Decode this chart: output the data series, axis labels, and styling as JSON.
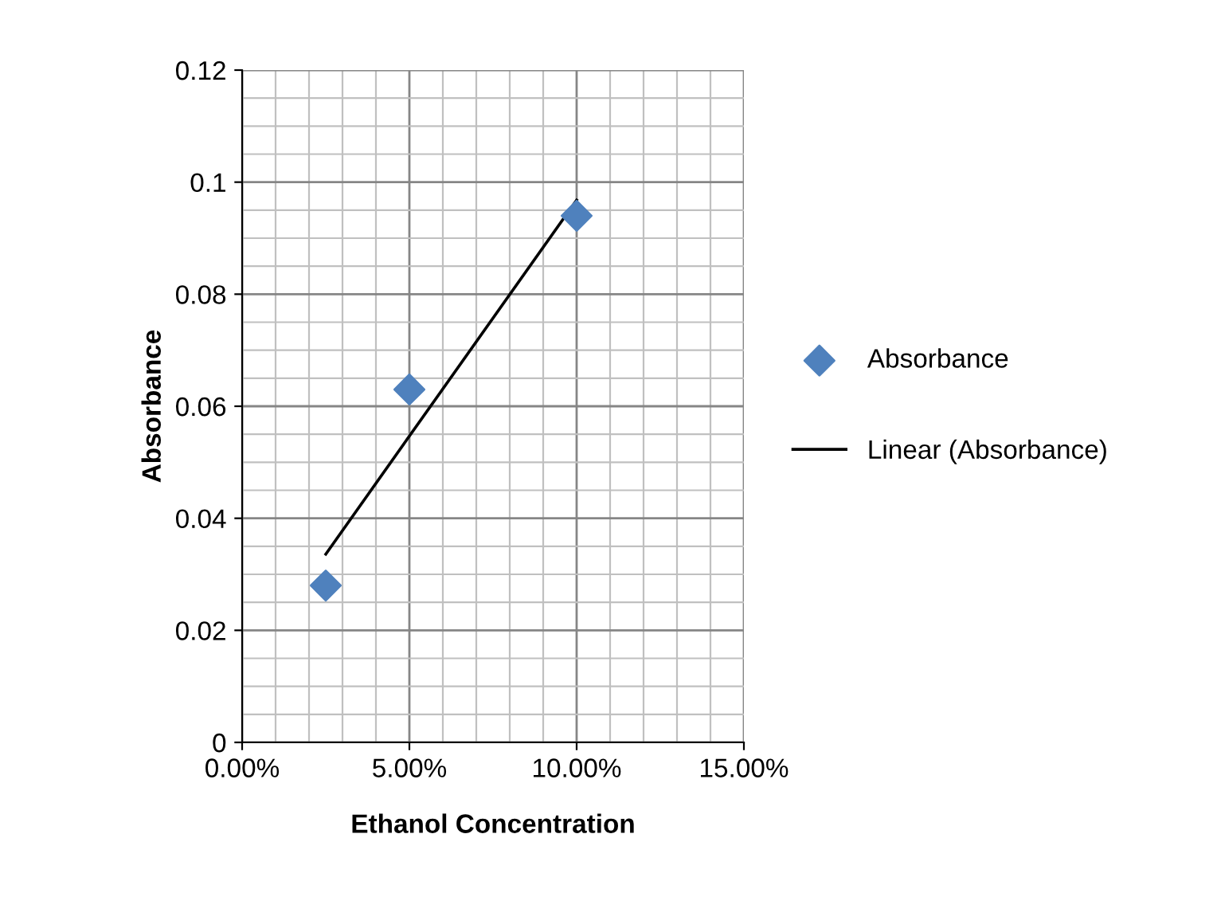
{
  "chart_data": {
    "type": "scatter",
    "xlabel": "Ethanol Concentration",
    "ylabel": "Absorbance",
    "xlim": [
      0,
      0.15
    ],
    "xticks": [
      {
        "value": 0,
        "label": "0.00%"
      },
      {
        "value": 0.05,
        "label": "5.00%"
      },
      {
        "value": 0.1,
        "label": "10.00%"
      },
      {
        "value": 0.15,
        "label": "15.00%"
      }
    ],
    "ylim": [
      0,
      0.12
    ],
    "yticks": [
      0,
      0.02,
      0.04,
      0.06,
      0.08,
      0.1,
      0.12
    ],
    "series": [
      {
        "name": "Absorbance",
        "color": "#4f81bd",
        "marker": "diamond",
        "x": [
          0.025,
          0.05,
          0.1
        ],
        "values": [
          0.028,
          0.063,
          0.094
        ]
      },
      {
        "name": "Linear (Absorbance)",
        "type": "line",
        "color": "#000000",
        "marker": "none",
        "line_style": "solid",
        "x": [
          0.025,
          0.1
        ],
        "values": [
          0.0336,
          0.0968
        ]
      }
    ],
    "grid": true,
    "legend": "right"
  }
}
